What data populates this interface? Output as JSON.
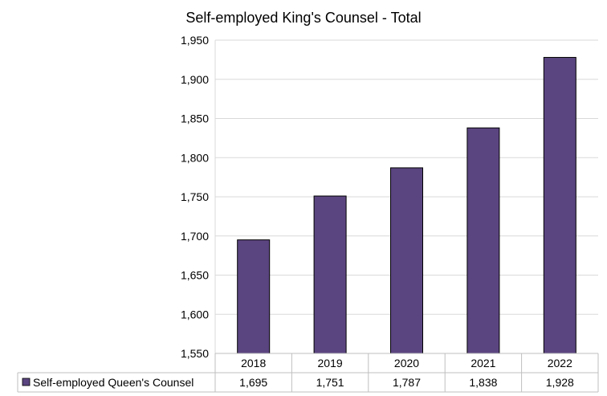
{
  "chart_data": {
    "type": "bar",
    "title": "Self-employed King's Counsel - Total",
    "categories": [
      "2018",
      "2019",
      "2020",
      "2021",
      "2022"
    ],
    "series": [
      {
        "name": "Self-employed Queen's Counsel",
        "values": [
          1695,
          1751,
          1787,
          1838,
          1928
        ],
        "value_labels": [
          "1,695",
          "1,751",
          "1,787",
          "1,838",
          "1,928"
        ],
        "color": "#5b4580"
      }
    ],
    "ylim": [
      1550,
      1950
    ],
    "y_ticks": [
      1550,
      1600,
      1650,
      1700,
      1750,
      1800,
      1850,
      1900,
      1950
    ],
    "y_tick_labels": [
      "1,550",
      "1,600",
      "1,650",
      "1,700",
      "1,750",
      "1,800",
      "1,850",
      "1,900",
      "1,950"
    ],
    "grid": true,
    "legend": "data-table"
  }
}
